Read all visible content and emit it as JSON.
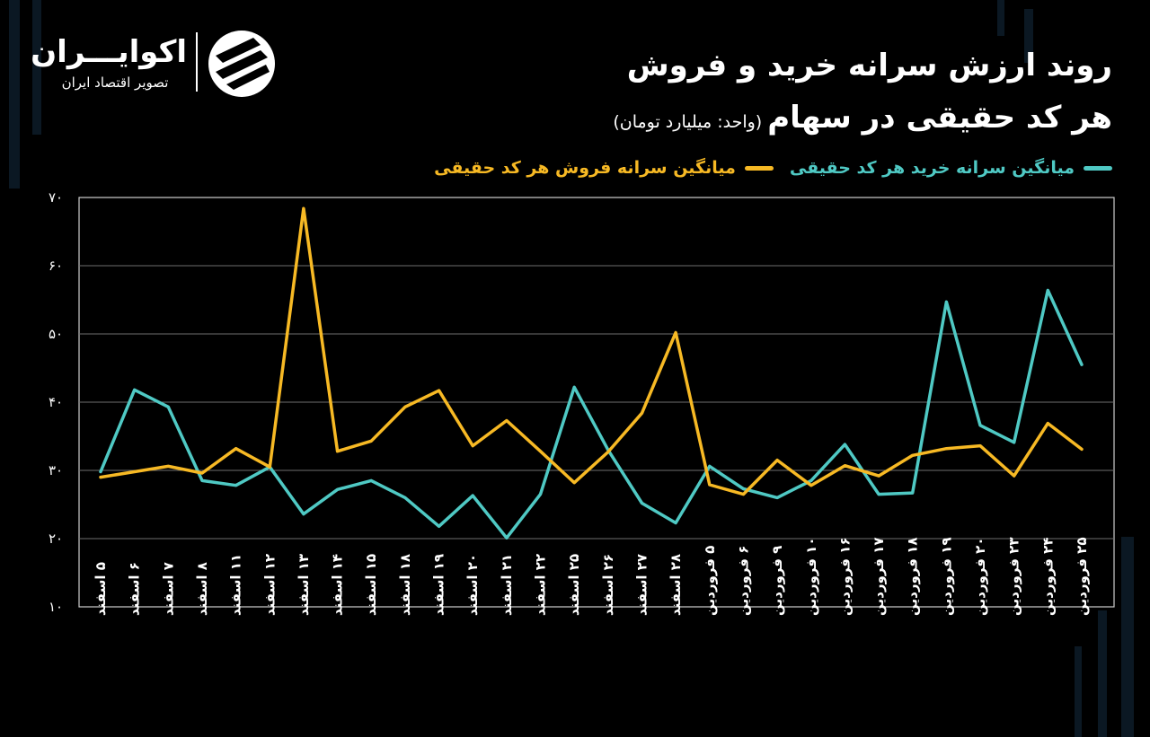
{
  "brand": {
    "name": "اکوایـــران",
    "tagline": "تصویر اقتصاد ایران"
  },
  "title": {
    "line1": "روند ارزش سرانه خرید و فروش",
    "line2": "هر کد حقیقی در سهام",
    "unit": "(واحد: میلیارد تومان)"
  },
  "colors": {
    "background": "#000000",
    "buy": "#4fc9c4",
    "sell": "#f7b924",
    "grid": "#6e6e6e",
    "axis": "#cfcfcf"
  },
  "chart_data": {
    "type": "line",
    "ylim": [
      10,
      70
    ],
    "y_ticks": [
      "۱۰",
      "۲۰",
      "۳۰",
      "۴۰",
      "۵۰",
      "۶۰",
      "۷۰"
    ],
    "y_tick_values": [
      10,
      20,
      30,
      40,
      50,
      60,
      70
    ],
    "grid": true,
    "legend_position": "top-right",
    "categories": [
      "۵ اسفند",
      "۶ اسفند",
      "۷ اسفند",
      "۸ اسفند",
      "۱۱ اسفند",
      "۱۲ اسفند",
      "۱۳ اسفند",
      "۱۴ اسفند",
      "۱۵ اسفند",
      "۱۸ اسفند",
      "۱۹ اسفند",
      "۲۰ اسفند",
      "۲۱ اسفند",
      "۲۲ اسفند",
      "۲۵ اسفند",
      "۲۶ اسفند",
      "۲۷ اسفند",
      "۲۸ اسفند",
      "۵ فروردین",
      "۶ فروردین",
      "۹ فروردین",
      "۱۰ فروردین",
      "۱۶ فروردین",
      "۱۷ فروردین",
      "۱۸ فروردین",
      "۱۹ فروردین",
      "۲۰ فروردین",
      "۲۳ فروردین",
      "۲۴ فروردین",
      "۲۵ فروردین"
    ],
    "series": [
      {
        "name": "میانگین سرانه خرید هر کد حقیقی",
        "color": "#4fc9c4",
        "values": [
          29.8,
          41.8,
          39.3,
          28.5,
          27.8,
          30.5,
          23.6,
          27.2,
          28.5,
          26.0,
          21.8,
          26.3,
          20.1,
          26.5,
          42.2,
          33.0,
          25.2,
          22.3,
          30.6,
          27.3,
          26.0,
          28.5,
          33.8,
          26.5,
          26.7,
          54.7,
          36.6,
          34.1,
          56.4,
          45.5
        ]
      },
      {
        "name": "میانگین سرانه فروش هر کد حقیقی",
        "color": "#f7b924",
        "values": [
          29.0,
          29.8,
          30.6,
          29.6,
          33.2,
          30.5,
          68.4,
          32.8,
          34.3,
          39.3,
          41.7,
          33.6,
          37.3,
          32.8,
          28.2,
          32.7,
          38.4,
          50.2,
          27.9,
          26.5,
          31.5,
          27.8,
          30.7,
          29.2,
          32.2,
          33.2,
          33.6,
          29.2,
          36.9,
          33.1
        ]
      }
    ]
  }
}
